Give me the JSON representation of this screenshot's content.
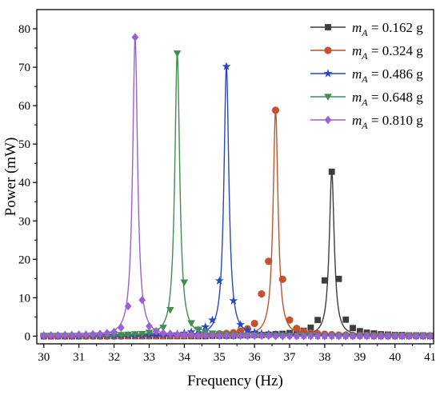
{
  "chart_data": {
    "type": "line",
    "title": "",
    "xlabel": "Frequency (Hz)",
    "ylabel": "Power (mW)",
    "xlim": [
      29.8,
      41.1
    ],
    "ylim": [
      -2,
      85
    ],
    "xticks": [
      30,
      31,
      32,
      33,
      34,
      35,
      36,
      37,
      38,
      39,
      40,
      41
    ],
    "yticks": [
      0,
      10,
      20,
      30,
      40,
      50,
      60,
      70,
      80
    ],
    "xtick_labels": [
      "30",
      "31",
      "32",
      "33",
      "34",
      "35",
      "36",
      "37",
      "38",
      "39",
      "40",
      "41"
    ],
    "ytick_labels": [
      "0",
      "10",
      "20",
      "30",
      "40",
      "50",
      "60",
      "70",
      "80"
    ],
    "grid": false,
    "legend_position": "top-right",
    "series": [
      {
        "name": "m_A = 0.162 g",
        "legend_var": "m",
        "legend_sub": "A",
        "legend_rest": " = 0.162 g",
        "color": "#3d3d3d",
        "marker": "square",
        "peak_freq": 38.2,
        "peak_power": 42.8,
        "x": [
          30.0,
          30.2,
          30.4,
          30.6,
          30.8,
          31.0,
          31.2,
          31.4,
          31.6,
          31.8,
          32.0,
          32.2,
          32.4,
          32.6,
          32.8,
          33.0,
          33.2,
          33.4,
          33.6,
          33.8,
          34.0,
          34.2,
          34.4,
          34.6,
          34.8,
          35.0,
          35.2,
          35.4,
          35.6,
          35.8,
          36.0,
          36.2,
          36.4,
          36.6,
          36.8,
          37.0,
          37.2,
          37.4,
          37.6,
          37.8,
          38.0,
          38.2,
          38.4,
          38.6,
          38.8,
          39.0,
          39.2,
          39.4,
          39.6,
          39.8,
          40.0,
          40.2,
          40.4,
          40.6,
          40.8,
          41.0
        ],
        "y": [
          0.0,
          0.0,
          0.0,
          0.0,
          0.0,
          0.0,
          0.0,
          0.0,
          0.0,
          0.0,
          0.0,
          0.0,
          0.0,
          0.0,
          0.0,
          0.0,
          0.0,
          0.0,
          0.0,
          0.0,
          0.0,
          0.0,
          0.0,
          0.0,
          0.1,
          0.1,
          0.1,
          0.1,
          0.2,
          0.2,
          0.3,
          0.3,
          0.4,
          0.5,
          0.6,
          0.8,
          1.0,
          1.4,
          2.2,
          4.2,
          14.5,
          42.8,
          14.9,
          4.3,
          2.1,
          1.3,
          0.9,
          0.7,
          0.5,
          0.4,
          0.3,
          0.3,
          0.2,
          0.2,
          0.2,
          0.1
        ]
      },
      {
        "name": "m_A = 0.324 g",
        "legend_var": "m",
        "legend_sub": "A",
        "legend_rest": " = 0.324 g",
        "color": "#c4522d",
        "marker": "circle",
        "peak_freq": 36.6,
        "peak_power": 58.8,
        "x": [
          30.0,
          30.2,
          30.4,
          30.6,
          30.8,
          31.0,
          31.2,
          31.4,
          31.6,
          31.8,
          32.0,
          32.2,
          32.4,
          32.6,
          32.8,
          33.0,
          33.2,
          33.4,
          33.6,
          33.8,
          34.0,
          34.2,
          34.4,
          34.6,
          34.8,
          35.0,
          35.2,
          35.4,
          35.6,
          35.8,
          36.0,
          36.2,
          36.4,
          36.6,
          36.8,
          37.0,
          37.2,
          37.4,
          37.6,
          37.8,
          38.0,
          38.2,
          38.4,
          38.6,
          38.8,
          39.0,
          39.2,
          39.4,
          39.6,
          39.8,
          40.0,
          40.2,
          40.4,
          40.6,
          40.8,
          41.0
        ],
        "y": [
          0.0,
          0.0,
          0.0,
          0.0,
          0.0,
          0.0,
          0.0,
          0.0,
          0.0,
          0.0,
          0.0,
          0.0,
          0.1,
          0.1,
          0.1,
          0.1,
          0.1,
          0.1,
          0.2,
          0.2,
          0.2,
          0.3,
          0.3,
          0.4,
          0.5,
          0.6,
          0.7,
          0.9,
          1.3,
          1.9,
          3.3,
          11.0,
          19.5,
          58.8,
          14.8,
          4.2,
          2.0,
          1.2,
          0.8,
          0.6,
          0.5,
          0.4,
          0.3,
          0.3,
          0.2,
          0.2,
          0.2,
          0.1,
          0.1,
          0.1,
          0.1,
          0.1,
          0.1,
          0.1,
          0.1,
          0.1
        ]
      },
      {
        "name": "m_A = 0.486 g",
        "legend_var": "m",
        "legend_sub": "A",
        "legend_rest": " = 0.486 g",
        "color": "#2448c4",
        "marker": "star",
        "peak_freq": 35.2,
        "peak_power": 70.2,
        "x": [
          30.0,
          30.2,
          30.4,
          30.6,
          30.8,
          31.0,
          31.2,
          31.4,
          31.6,
          31.8,
          32.0,
          32.2,
          32.4,
          32.6,
          32.8,
          33.0,
          33.2,
          33.4,
          33.6,
          33.8,
          34.0,
          34.2,
          34.4,
          34.6,
          34.8,
          35.0,
          35.2,
          35.4,
          35.6,
          35.8,
          36.0,
          36.2,
          36.4,
          36.6,
          36.8,
          37.0,
          37.2,
          37.4,
          37.6,
          37.8,
          38.0,
          38.2,
          38.4,
          38.6,
          38.8,
          39.0,
          39.2,
          39.4,
          39.6,
          39.8,
          40.0,
          40.2,
          40.4,
          40.6,
          40.8,
          41.0
        ],
        "y": [
          0.0,
          0.0,
          0.0,
          0.0,
          0.0,
          0.0,
          0.1,
          0.1,
          0.1,
          0.1,
          0.1,
          0.1,
          0.2,
          0.2,
          0.2,
          0.3,
          0.3,
          0.4,
          0.5,
          0.6,
          0.8,
          1.1,
          1.6,
          2.4,
          4.2,
          14.4,
          70.2,
          9.2,
          3.0,
          1.6,
          1.0,
          0.7,
          0.5,
          0.4,
          0.3,
          0.3,
          0.2,
          0.2,
          0.2,
          0.1,
          0.1,
          0.1,
          0.1,
          0.1,
          0.1,
          0.1,
          0.1,
          0.0,
          0.0,
          0.0,
          0.0,
          0.0,
          0.0,
          0.0,
          0.0,
          0.0
        ]
      },
      {
        "name": "m_A = 0.648 g",
        "legend_var": "m",
        "legend_sub": "A",
        "legend_rest": " = 0.648 g",
        "color": "#3f8f4f",
        "marker": "triangle-down",
        "peak_freq": 33.8,
        "peak_power": 73.6,
        "x": [
          30.0,
          30.2,
          30.4,
          30.6,
          30.8,
          31.0,
          31.2,
          31.4,
          31.6,
          31.8,
          32.0,
          32.2,
          32.4,
          32.6,
          32.8,
          33.0,
          33.2,
          33.4,
          33.6,
          33.8,
          34.0,
          34.2,
          34.4,
          34.6,
          34.8,
          35.0,
          35.2,
          35.4,
          35.6,
          35.8,
          36.0,
          36.2,
          36.4,
          36.6,
          36.8,
          37.0,
          37.2,
          37.4,
          37.6,
          37.8,
          38.0,
          38.2,
          38.4,
          38.6,
          38.8,
          39.0,
          39.2,
          39.4,
          39.6,
          39.8,
          40.0,
          40.2,
          40.4,
          40.6,
          40.8,
          41.0
        ],
        "y": [
          0.1,
          0.1,
          0.1,
          0.1,
          0.1,
          0.1,
          0.1,
          0.2,
          0.2,
          0.2,
          0.3,
          0.3,
          0.4,
          0.5,
          0.6,
          0.9,
          1.3,
          2.2,
          6.8,
          73.6,
          14.0,
          3.4,
          1.7,
          1.0,
          0.7,
          0.5,
          0.4,
          0.3,
          0.2,
          0.2,
          0.2,
          0.1,
          0.1,
          0.1,
          0.1,
          0.1,
          0.1,
          0.1,
          0.1,
          0.0,
          0.0,
          0.0,
          0.0,
          0.0,
          0.0,
          0.0,
          0.0,
          0.0,
          0.0,
          0.0,
          0.0,
          0.0,
          0.0,
          0.0,
          0.0,
          0.0
        ]
      },
      {
        "name": "m_A = 0.810 g",
        "legend_var": "m",
        "legend_sub": "A",
        "legend_rest": " = 0.810 g",
        "color": "#9b5fd6",
        "marker": "diamond",
        "peak_freq": 32.6,
        "peak_power": 77.8,
        "x": [
          30.0,
          30.2,
          30.4,
          30.6,
          30.8,
          31.0,
          31.2,
          31.4,
          31.6,
          31.8,
          32.0,
          32.2,
          32.4,
          32.6,
          32.8,
          33.0,
          33.2,
          33.4,
          33.6,
          33.8,
          34.0,
          34.2,
          34.4,
          34.6,
          34.8,
          35.0,
          35.2,
          35.4,
          35.6,
          35.8,
          36.0,
          36.2,
          36.4,
          36.6,
          36.8,
          37.0,
          37.2,
          37.4,
          37.6,
          37.8,
          38.0,
          38.2,
          38.4,
          38.6,
          38.8,
          39.0,
          39.2,
          39.4,
          39.6,
          39.8,
          40.0,
          40.2,
          40.4,
          40.6,
          40.8,
          41.0
        ],
        "y": [
          0.2,
          0.2,
          0.2,
          0.3,
          0.3,
          0.4,
          0.4,
          0.5,
          0.6,
          0.8,
          1.1,
          2.2,
          7.8,
          77.8,
          9.4,
          2.6,
          1.3,
          0.8,
          0.6,
          0.4,
          0.3,
          0.3,
          0.2,
          0.2,
          0.2,
          0.1,
          0.1,
          0.1,
          0.1,
          0.1,
          0.1,
          0.1,
          0.1,
          0.0,
          0.0,
          0.0,
          0.0,
          0.0,
          0.0,
          0.0,
          0.0,
          0.0,
          0.0,
          0.0,
          0.0,
          0.0,
          0.0,
          0.0,
          0.0,
          0.0,
          0.0,
          0.0,
          0.0,
          0.0,
          0.0,
          0.0
        ]
      }
    ]
  }
}
